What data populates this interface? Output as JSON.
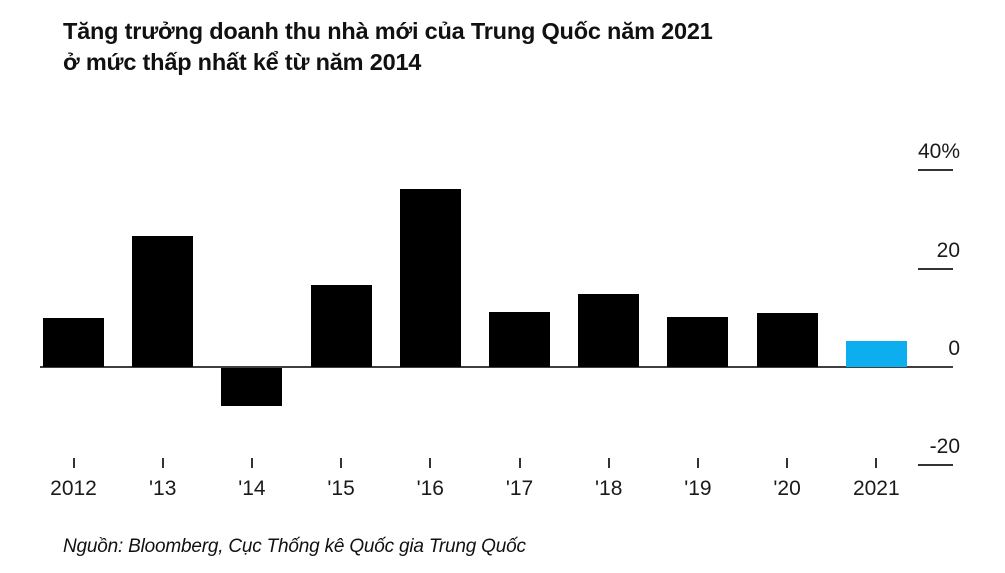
{
  "title": {
    "line1": "Tăng trưởng doanh thu nhà mới của Trung Quốc năm 2021",
    "line2": "ở mức thấp nhất kể từ năm 2014"
  },
  "source": "Nguồn: Bloomberg, Cục Thống kê Quốc gia Trung Quốc",
  "chart_data": {
    "type": "bar",
    "categories": [
      "2012",
      "'13",
      "'14",
      "'15",
      "'16",
      "'17",
      "'18",
      "'19",
      "'20",
      "2021"
    ],
    "values": [
      10.0,
      26.6,
      -7.8,
      16.6,
      36.2,
      11.2,
      14.8,
      10.2,
      10.9,
      5.3
    ],
    "unit": "%",
    "title": "Tăng trưởng doanh thu nhà mới của Trung Quốc năm 2021 ở mức thấp nhất kể từ năm 2014",
    "xlabel": "",
    "ylabel": "",
    "ylim": [
      -20,
      40
    ],
    "yticks": [
      {
        "label": "40%",
        "value": 40
      },
      {
        "label": "20",
        "value": 20
      },
      {
        "label": "0",
        "value": 0
      },
      {
        "label": "-20",
        "value": -20
      }
    ],
    "grid": false,
    "legend": "none",
    "axis_side": "right",
    "highlight_index": 9,
    "bar_color": "#000000",
    "highlight_color": "#0caeef"
  },
  "colors": {
    "bar_black": "#000000",
    "accent_blue": "#0caeef",
    "axis_line": "#3f3f3f",
    "tick": "#333333",
    "text": "#1a1a1a"
  }
}
